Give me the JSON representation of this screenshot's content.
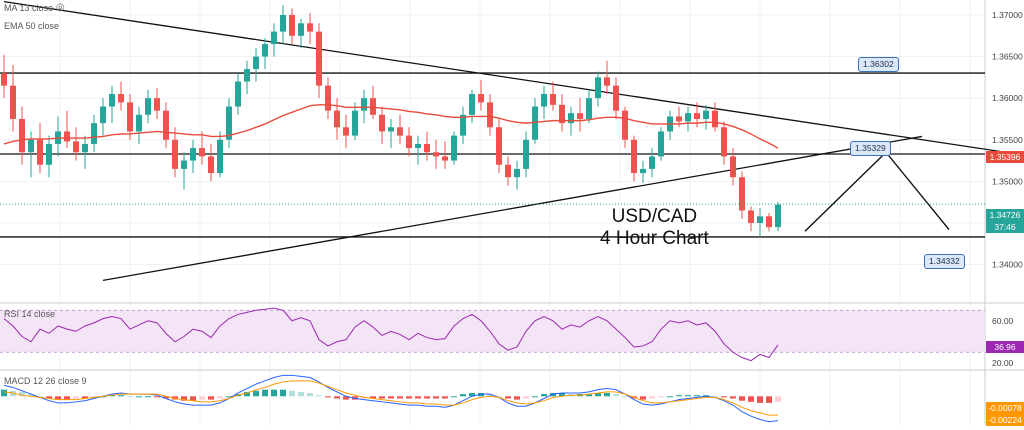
{
  "legend": {
    "ma13": "MA 13 close",
    "ema50": "EMA 50 close",
    "rsi": "RSI 14 close",
    "macd": "MACD 12 26 close 9"
  },
  "annotation": {
    "line1": "USD/CAD",
    "line2": "4 Hour Chart"
  },
  "callouts": [
    {
      "label": "1.36302"
    },
    {
      "label": "1.35329"
    },
    {
      "label": "1.34332"
    }
  ],
  "price_tags": {
    "ema": "1.35396",
    "last": "1.34726",
    "countdown": "37:46",
    "rsi_value": "36.96",
    "macd_1": "-0.00078",
    "macd_2": "-0.00224"
  },
  "colors": {
    "bull": "#26a69a",
    "bear": "#ef5350",
    "ema": "#e84b3c",
    "rsi": "#9c27b0",
    "rsi_band": "#f3e5f5",
    "macd_line": "#2962ff",
    "signal_line": "#ff9800"
  },
  "chart_data": [
    {
      "type": "candlestick",
      "title": "",
      "ylim": [
        1.3355,
        1.3718
      ],
      "y_ticks": [
        "1.37000",
        "1.36500",
        "1.36000",
        "1.35500",
        "1.35000",
        "1.34500",
        "1.34000"
      ],
      "y_tick_values": [
        1.37,
        1.365,
        1.36,
        1.355,
        1.35,
        1.345,
        1.34
      ],
      "grid": true,
      "candles": [
        [
          1.363,
          1.3652,
          1.36,
          1.3615
        ],
        [
          1.3615,
          1.364,
          1.356,
          1.3575
        ],
        [
          1.3575,
          1.359,
          1.352,
          1.3535
        ],
        [
          1.3535,
          1.356,
          1.3505,
          1.355
        ],
        [
          1.355,
          1.357,
          1.351,
          1.352
        ],
        [
          1.352,
          1.3555,
          1.3505,
          1.3545
        ],
        [
          1.3545,
          1.3578,
          1.353,
          1.356
        ],
        [
          1.356,
          1.3585,
          1.354,
          1.3548
        ],
        [
          1.3548,
          1.3565,
          1.3525,
          1.3535
        ],
        [
          1.3535,
          1.3555,
          1.3515,
          1.3545
        ],
        [
          1.3545,
          1.358,
          1.3535,
          1.357
        ],
        [
          1.357,
          1.36,
          1.3555,
          1.359
        ],
        [
          1.359,
          1.3615,
          1.357,
          1.3605
        ],
        [
          1.3605,
          1.362,
          1.3585,
          1.3595
        ],
        [
          1.3595,
          1.3605,
          1.355,
          1.356
        ],
        [
          1.356,
          1.359,
          1.3545,
          1.358
        ],
        [
          1.358,
          1.361,
          1.357,
          1.36
        ],
        [
          1.36,
          1.3612,
          1.3575,
          1.3585
        ],
        [
          1.3585,
          1.3595,
          1.354,
          1.355
        ],
        [
          1.355,
          1.3565,
          1.3505,
          1.3515
        ],
        [
          1.3515,
          1.3535,
          1.349,
          1.3525
        ],
        [
          1.3525,
          1.355,
          1.351,
          1.354
        ],
        [
          1.354,
          1.356,
          1.352,
          1.353
        ],
        [
          1.353,
          1.3545,
          1.35,
          1.351
        ],
        [
          1.351,
          1.356,
          1.3505,
          1.355
        ],
        [
          1.355,
          1.36,
          1.354,
          1.359
        ],
        [
          1.359,
          1.363,
          1.358,
          1.362
        ],
        [
          1.362,
          1.3645,
          1.3605,
          1.3635
        ],
        [
          1.3635,
          1.366,
          1.362,
          1.365
        ],
        [
          1.365,
          1.3672,
          1.3635,
          1.3665
        ],
        [
          1.3665,
          1.369,
          1.365,
          1.368
        ],
        [
          1.368,
          1.3712,
          1.3665,
          1.37
        ],
        [
          1.37,
          1.3708,
          1.3665,
          1.3675
        ],
        [
          1.3675,
          1.3695,
          1.366,
          1.369
        ],
        [
          1.369,
          1.3702,
          1.3665,
          1.368
        ],
        [
          1.368,
          1.369,
          1.36,
          1.3615
        ],
        [
          1.3615,
          1.3625,
          1.3575,
          1.3585
        ],
        [
          1.3585,
          1.36,
          1.355,
          1.3565
        ],
        [
          1.3565,
          1.358,
          1.354,
          1.3555
        ],
        [
          1.3555,
          1.3595,
          1.355,
          1.3585
        ],
        [
          1.3585,
          1.361,
          1.357,
          1.36
        ],
        [
          1.36,
          1.3615,
          1.3575,
          1.358
        ],
        [
          1.358,
          1.359,
          1.3545,
          1.356
        ],
        [
          1.356,
          1.3575,
          1.354,
          1.3565
        ],
        [
          1.3565,
          1.358,
          1.3545,
          1.3555
        ],
        [
          1.3555,
          1.3565,
          1.353,
          1.354
        ],
        [
          1.354,
          1.3555,
          1.352,
          1.3545
        ],
        [
          1.3545,
          1.356,
          1.3525,
          1.3535
        ],
        [
          1.3535,
          1.355,
          1.3515,
          1.353
        ],
        [
          1.353,
          1.3548,
          1.3515,
          1.3525
        ],
        [
          1.3525,
          1.356,
          1.352,
          1.3555
        ],
        [
          1.3555,
          1.359,
          1.3545,
          1.358
        ],
        [
          1.358,
          1.361,
          1.357,
          1.3605
        ],
        [
          1.3605,
          1.3622,
          1.3585,
          1.3595
        ],
        [
          1.3595,
          1.3605,
          1.3555,
          1.3565
        ],
        [
          1.3565,
          1.3575,
          1.351,
          1.352
        ],
        [
          1.352,
          1.353,
          1.3495,
          1.3505
        ],
        [
          1.3505,
          1.3525,
          1.349,
          1.3515
        ],
        [
          1.3515,
          1.356,
          1.3505,
          1.355
        ],
        [
          1.355,
          1.36,
          1.3545,
          1.359
        ],
        [
          1.359,
          1.3615,
          1.3575,
          1.3605
        ],
        [
          1.3605,
          1.362,
          1.3585,
          1.3592
        ],
        [
          1.3592,
          1.3605,
          1.356,
          1.357
        ],
        [
          1.357,
          1.359,
          1.3555,
          1.3582
        ],
        [
          1.3582,
          1.36,
          1.356,
          1.3575
        ],
        [
          1.3575,
          1.361,
          1.357,
          1.36
        ],
        [
          1.36,
          1.3632,
          1.359,
          1.3625
        ],
        [
          1.3625,
          1.3645,
          1.3605,
          1.3615
        ],
        [
          1.3615,
          1.3625,
          1.3575,
          1.3585
        ],
        [
          1.3585,
          1.359,
          1.354,
          1.355
        ],
        [
          1.355,
          1.3555,
          1.35,
          1.351
        ],
        [
          1.351,
          1.3525,
          1.3498,
          1.3515
        ],
        [
          1.3515,
          1.354,
          1.3505,
          1.353
        ],
        [
          1.353,
          1.3565,
          1.3525,
          1.356
        ],
        [
          1.356,
          1.3585,
          1.355,
          1.3578
        ],
        [
          1.3578,
          1.359,
          1.3565,
          1.3572
        ],
        [
          1.3572,
          1.359,
          1.356,
          1.3582
        ],
        [
          1.3582,
          1.3595,
          1.3565,
          1.3575
        ],
        [
          1.3575,
          1.3592,
          1.3562,
          1.3585
        ],
        [
          1.3585,
          1.3595,
          1.356,
          1.3565
        ],
        [
          1.3565,
          1.3572,
          1.352,
          1.353
        ],
        [
          1.353,
          1.354,
          1.3495,
          1.3505
        ],
        [
          1.3505,
          1.3512,
          1.3455,
          1.3465
        ],
        [
          1.3465,
          1.347,
          1.344,
          1.345
        ],
        [
          1.345,
          1.3468,
          1.3433,
          1.3458
        ],
        [
          1.3458,
          1.3462,
          1.344,
          1.3445
        ],
        [
          1.3445,
          1.3475,
          1.344,
          1.3472
        ]
      ],
      "ma13": [
        1.36,
        1.359,
        1.3575,
        1.3565,
        1.3555,
        1.355,
        1.3552,
        1.3553,
        1.355,
        1.3546,
        1.355,
        1.356,
        1.357,
        1.3578,
        1.3578,
        1.3578,
        1.3582,
        1.3585,
        1.358,
        1.357,
        1.3558,
        1.355,
        1.3544,
        1.3536,
        1.3536,
        1.3546,
        1.356,
        1.3578,
        1.3598,
        1.3618,
        1.3636,
        1.3654,
        1.3664,
        1.3672,
        1.3676,
        1.367,
        1.3658,
        1.3642,
        1.3625,
        1.3612,
        1.3604,
        1.3596,
        1.3586,
        1.3578,
        1.3572,
        1.3564,
        1.3558,
        1.3552,
        1.3546,
        1.354,
        1.3542,
        1.3548,
        1.3558,
        1.3566,
        1.357,
        1.3564,
        1.3552,
        1.3542,
        1.354,
        1.3548,
        1.3558,
        1.3568,
        1.3574,
        1.3578,
        1.358,
        1.3584,
        1.3592,
        1.3598,
        1.36,
        1.359,
        1.3574,
        1.356,
        1.3552,
        1.355,
        1.3552,
        1.3556,
        1.3562,
        1.3568,
        1.3572,
        1.3574,
        1.3566,
        1.355,
        1.353,
        1.351,
        1.3492,
        1.3478,
        1.3468
      ],
      "ema50": [
        1.3545,
        1.3548,
        1.355,
        1.3551,
        1.3551,
        1.3551,
        1.3552,
        1.3552,
        1.3552,
        1.3552,
        1.3553,
        1.3554,
        1.3556,
        1.3557,
        1.3557,
        1.3558,
        1.3559,
        1.356,
        1.3559,
        1.3558,
        1.3557,
        1.3556,
        1.3556,
        1.3554,
        1.3554,
        1.3555,
        1.3558,
        1.3561,
        1.3565,
        1.3569,
        1.3574,
        1.3579,
        1.3583,
        1.3587,
        1.3591,
        1.3592,
        1.3592,
        1.3591,
        1.3589,
        1.3589,
        1.3589,
        1.3589,
        1.3588,
        1.3587,
        1.3586,
        1.3584,
        1.3583,
        1.3581,
        1.358,
        1.3578,
        1.3577,
        1.3577,
        1.3578,
        1.3578,
        1.3578,
        1.3576,
        1.3573,
        1.3571,
        1.357,
        1.3571,
        1.3572,
        1.3573,
        1.3573,
        1.3573,
        1.3573,
        1.3574,
        1.3576,
        1.3577,
        1.3577,
        1.3576,
        1.3573,
        1.3571,
        1.3569,
        1.3569,
        1.3569,
        1.3569,
        1.357,
        1.357,
        1.3571,
        1.3571,
        1.3569,
        1.3566,
        1.3562,
        1.3557,
        1.3551,
        1.3546,
        1.354
      ],
      "levels": [
        1.36302,
        1.35329,
        1.34332
      ],
      "trendlines": [
        {
          "from": [
            0,
            1.3716
          ],
          "to": [
            118,
            1.3524
          ]
        },
        {
          "from": [
            11,
            1.3381
          ],
          "to": [
            102,
            1.3554
          ]
        }
      ],
      "projection": [
        [
          89,
          1.344
        ],
        [
          98,
          1.3535
        ],
        [
          105,
          1.3442
        ]
      ],
      "current_price": 1.34726,
      "ema_value": 1.35396
    },
    {
      "type": "line",
      "title": "RSI 14 close",
      "ylim": [
        15,
        75
      ],
      "y_ticks": [
        "60.00",
        "20.00"
      ],
      "y_tick_values": [
        60,
        20
      ],
      "band": [
        30,
        70
      ],
      "values": [
        62,
        55,
        45,
        40,
        52,
        48,
        55,
        52,
        50,
        55,
        58,
        62,
        64,
        62,
        52,
        56,
        60,
        58,
        48,
        40,
        45,
        52,
        50,
        44,
        55,
        62,
        66,
        68,
        70,
        71,
        72,
        70,
        60,
        63,
        60,
        42,
        36,
        40,
        42,
        54,
        60,
        54,
        46,
        50,
        47,
        42,
        48,
        44,
        42,
        43,
        55,
        62,
        66,
        60,
        50,
        38,
        32,
        35,
        50,
        60,
        64,
        60,
        52,
        56,
        54,
        60,
        64,
        60,
        52,
        44,
        35,
        36,
        40,
        52,
        60,
        58,
        60,
        56,
        58,
        50,
        38,
        30,
        25,
        22,
        28,
        25,
        36.96
      ],
      "current_value": 36.96
    },
    {
      "type": "bar",
      "title": "MACD 12 26 close 9",
      "y_ticks": [
        "-0.00078",
        "-0.00224"
      ],
      "histogram": [
        0.0006,
        0.0005,
        0.0004,
        0.0002,
        0.0,
        -0.0002,
        -0.0003,
        -0.0003,
        -0.0002,
        -0.0002,
        -0.0001,
        0.0,
        0.0001,
        0.0001,
        0.0,
        0.0,
        0.0,
        -0.0001,
        -0.0002,
        -0.0003,
        -0.0004,
        -0.0004,
        -0.0003,
        -0.0003,
        -0.0002,
        0.0,
        0.0002,
        0.0004,
        0.0005,
        0.0006,
        0.0006,
        0.0006,
        0.0005,
        0.0004,
        0.0003,
        0.0001,
        -0.0001,
        -0.0002,
        -0.0003,
        -0.0003,
        -0.0002,
        -0.0002,
        -0.0002,
        -0.0002,
        -0.0002,
        -0.0002,
        -0.0002,
        -0.0002,
        -0.0002,
        -0.0002,
        0.0,
        0.0002,
        0.0003,
        0.0003,
        0.0002,
        0.0,
        -0.0002,
        -0.0003,
        -0.0002,
        0.0,
        0.0002,
        0.0003,
        0.0003,
        0.0002,
        0.0002,
        0.0002,
        0.0003,
        0.0003,
        0.0002,
        0.0,
        -0.0002,
        -0.0003,
        -0.0002,
        -0.0001,
        0.0,
        0.0001,
        0.0001,
        0.0001,
        0.0001,
        0.0,
        -0.0001,
        -0.0002,
        -0.0004,
        -0.0005,
        -0.0006,
        -0.0006,
        -0.0005
      ],
      "macd": [
        0.001,
        0.0008,
        0.0005,
        0.0002,
        -0.0001,
        -0.0004,
        -0.0006,
        -0.0006,
        -0.0005,
        -0.0004,
        -0.0002,
        0.0,
        0.0002,
        0.0003,
        0.0002,
        0.0002,
        0.0002,
        0.0001,
        -0.0002,
        -0.0005,
        -0.0007,
        -0.0008,
        -0.0008,
        -0.0008,
        -0.0006,
        -0.0002,
        0.0003,
        0.0007,
        0.0011,
        0.0014,
        0.0017,
        0.0019,
        0.0019,
        0.0018,
        0.0017,
        0.0013,
        0.0008,
        0.0004,
        0.0,
        -0.0002,
        -0.0003,
        -0.0004,
        -0.0005,
        -0.0006,
        -0.0007,
        -0.0008,
        -0.0008,
        -0.0009,
        -0.0009,
        -0.001,
        -0.0008,
        -0.0004,
        0.0,
        0.0002,
        0.0002,
        -0.0001,
        -0.0006,
        -0.0009,
        -0.0009,
        -0.0006,
        -0.0002,
        0.0002,
        0.0003,
        0.0003,
        0.0003,
        0.0004,
        0.0006,
        0.0007,
        0.0006,
        0.0002,
        -0.0003,
        -0.0007,
        -0.0008,
        -0.0007,
        -0.0005,
        -0.0003,
        -0.0002,
        -0.0001,
        0.0,
        -0.0001,
        -0.0004,
        -0.0008,
        -0.0014,
        -0.0018,
        -0.0021,
        -0.0023,
        -0.0022
      ],
      "signal": [
        0.0004,
        0.0003,
        0.0001,
        0.0,
        -0.0001,
        -0.0002,
        -0.0003,
        -0.0003,
        -0.0003,
        -0.0002,
        -0.0001,
        0.0,
        0.0001,
        0.0002,
        0.0002,
        0.0002,
        0.0002,
        0.0002,
        0.0,
        -0.0002,
        -0.0003,
        -0.0004,
        -0.0005,
        -0.0005,
        -0.0004,
        -0.0002,
        0.0001,
        0.0003,
        0.0006,
        0.0008,
        0.0011,
        0.0013,
        0.0014,
        0.0014,
        0.0014,
        0.0012,
        0.0009,
        0.0006,
        0.0003,
        0.0001,
        -0.0001,
        -0.0002,
        -0.0003,
        -0.0004,
        -0.0005,
        -0.0006,
        -0.0006,
        -0.0007,
        -0.0007,
        -0.0008,
        -0.0008,
        -0.0006,
        -0.0003,
        -0.0001,
        0.0,
        -0.0001,
        -0.0004,
        -0.0006,
        -0.0007,
        -0.0006,
        -0.0004,
        -0.0001,
        0.0,
        0.0001,
        0.0001,
        0.0002,
        0.0003,
        0.0004,
        0.0004,
        0.0002,
        -0.0001,
        -0.0004,
        -0.0006,
        -0.0006,
        -0.0005,
        -0.0004,
        -0.0003,
        -0.0002,
        -0.0001,
        -0.0001,
        -0.0003,
        -0.0006,
        -0.001,
        -0.0013,
        -0.0015,
        -0.0017,
        -0.0017
      ],
      "ylim": [
        -0.0026,
        0.0022
      ]
    }
  ]
}
